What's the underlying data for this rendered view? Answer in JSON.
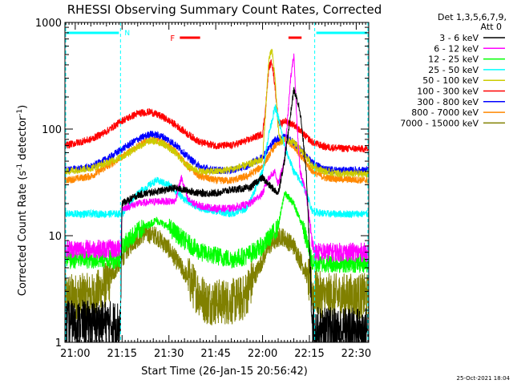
{
  "chart_data": {
    "type": "line",
    "title": "RHESSI Observing Summary Count Rates, Corrected",
    "xlabel": "Start Time (26-Jan-15 20:56:42)",
    "ylabel_main": "Corrected Count Rate (s",
    "ylabel_sup1": "-1",
    "ylabel_mid": " detector",
    "ylabel_sup2": "-1",
    "ylabel_end": ")",
    "y_scale": "log",
    "ylim": [
      1,
      1000
    ],
    "xlim": [
      56.7,
      154.0
    ],
    "x_unit": "minutes after 20:00 UT",
    "x_ticks": [
      60,
      75,
      90,
      105,
      120,
      135,
      150
    ],
    "x_tick_labels": [
      "21:00",
      "21:15",
      "21:30",
      "21:45",
      "22:00",
      "22:15",
      "22:30"
    ],
    "y_ticks": [
      1,
      10,
      100,
      1000
    ],
    "y_tick_labels": [
      "1",
      "10",
      "100",
      "1000"
    ],
    "legend_header_line1": "Det 1,3,5,6,7,9,",
    "legend_header_line2": "Att 0",
    "legend_placement": "right",
    "timestamp": "25-Oct-2021 18:04",
    "series": [
      {
        "name": "3 - 6 keV",
        "color": "#000000",
        "x": [
          56.7,
          70,
          74.5,
          75,
          80,
          86,
          92,
          100,
          105,
          110,
          116,
          118,
          120,
          122,
          125,
          127,
          130,
          132,
          134,
          136,
          137,
          140,
          145,
          154
        ],
        "values": [
          1.5,
          1.5,
          1.5,
          20,
          24,
          26,
          28,
          25,
          25,
          27,
          28,
          32,
          35,
          30,
          25,
          50,
          235,
          150,
          40,
          1.5,
          1.3,
          1.3,
          1.3,
          1.3
        ]
      },
      {
        "name": "6 - 12 keV",
        "color": "#ff00ff",
        "x": [
          56.7,
          70,
          74.5,
          75,
          80,
          86,
          92,
          94,
          96,
          98,
          100,
          105,
          110,
          116,
          120,
          122,
          124,
          125,
          127,
          129,
          130,
          131,
          132,
          134,
          136,
          137,
          140,
          145,
          154
        ],
        "values": [
          7.5,
          7.5,
          7.5,
          18,
          20,
          21,
          21,
          35,
          22,
          20,
          19,
          18,
          18,
          20,
          25,
          35,
          40,
          30,
          50,
          300,
          500,
          120,
          40,
          25,
          8,
          7,
          7,
          7,
          7
        ]
      },
      {
        "name": "12 - 25 keV",
        "color": "#00ff00",
        "x": [
          56.7,
          70,
          74.5,
          75,
          80,
          86,
          90,
          95,
          100,
          105,
          110,
          115,
          120,
          125,
          127,
          130,
          133,
          136,
          140,
          145,
          154
        ],
        "values": [
          6,
          6,
          6,
          8,
          11,
          14,
          12,
          9,
          7,
          6.5,
          6,
          6.5,
          8,
          12,
          25,
          20,
          12,
          5.5,
          5.5,
          5.5,
          5.5
        ]
      },
      {
        "name": "25 - 50 keV",
        "color": "#00ffff",
        "x": [
          56.7,
          70,
          74.5,
          75,
          80,
          86,
          90,
          95,
          100,
          105,
          110,
          115,
          120,
          122,
          124,
          125,
          127,
          130,
          133,
          136,
          140,
          154
        ],
        "values": [
          16,
          16,
          16,
          16,
          25,
          33,
          30,
          22,
          18,
          17,
          16,
          18,
          40,
          90,
          160,
          130,
          70,
          40,
          30,
          17,
          16,
          16
        ]
      },
      {
        "name": "50 - 100 keV",
        "color": "#cccc00",
        "x": [
          56.7,
          65,
          70,
          75,
          80,
          84,
          88,
          92,
          96,
          100,
          105,
          110,
          115,
          120,
          121,
          122,
          123,
          124,
          125,
          126,
          127,
          130,
          133,
          136,
          140,
          145,
          154
        ],
        "values": [
          40,
          43,
          48,
          55,
          68,
          78,
          74,
          60,
          45,
          40,
          40,
          42,
          46,
          52,
          150,
          450,
          550,
          300,
          100,
          75,
          80,
          75,
          60,
          45,
          40,
          38,
          38
        ]
      },
      {
        "name": "100 - 300 keV",
        "color": "#ff0000",
        "x": [
          56.7,
          65,
          70,
          75,
          80,
          84,
          88,
          92,
          96,
          100,
          105,
          110,
          115,
          120,
          121,
          122,
          123,
          124,
          125,
          126,
          127,
          130,
          133,
          136,
          140,
          145,
          154
        ],
        "values": [
          70,
          80,
          95,
          120,
          140,
          145,
          130,
          110,
          90,
          75,
          70,
          70,
          78,
          90,
          160,
          380,
          430,
          250,
          120,
          110,
          120,
          110,
          90,
          75,
          68,
          66,
          65
        ]
      },
      {
        "name": "300 - 800 keV",
        "color": "#0000ff",
        "x": [
          56.7,
          65,
          70,
          75,
          80,
          84,
          88,
          92,
          96,
          100,
          105,
          110,
          115,
          120,
          124,
          127,
          130,
          133,
          136,
          140,
          145,
          154
        ],
        "values": [
          41,
          44,
          52,
          65,
          80,
          90,
          85,
          72,
          55,
          44,
          41,
          41,
          45,
          55,
          80,
          85,
          75,
          60,
          48,
          42,
          41,
          41
        ]
      },
      {
        "name": "800 - 7000 keV",
        "color": "#ff8800",
        "x": [
          56.7,
          65,
          70,
          75,
          80,
          84,
          88,
          92,
          96,
          100,
          105,
          110,
          115,
          120,
          124,
          127,
          130,
          133,
          136,
          140,
          145,
          154
        ],
        "values": [
          33,
          36,
          44,
          55,
          70,
          80,
          75,
          62,
          45,
          36,
          33,
          33,
          36,
          45,
          70,
          80,
          70,
          52,
          40,
          35,
          34,
          33
        ]
      },
      {
        "name": "7000 - 15000 keV",
        "color": "#808000",
        "x": [
          56.7,
          64,
          66,
          70,
          74,
          78,
          82,
          86,
          90,
          94,
          98,
          102,
          106,
          110,
          114,
          118,
          122,
          126,
          130,
          134,
          136,
          140,
          145,
          154
        ],
        "values": [
          2.7,
          2.7,
          2.7,
          3.5,
          5.5,
          8.5,
          10.5,
          10,
          7.5,
          5,
          3.3,
          2.4,
          2.4,
          2.4,
          2.6,
          4.5,
          8,
          10,
          8,
          4.5,
          3,
          2.7,
          2.7,
          2.7
        ]
      }
    ]
  },
  "overlays": {
    "night_label": "N",
    "flare_label": "F",
    "night_color": "#00ffff",
    "flare_color": "#ff0000",
    "night_intervals": [
      [
        56.7,
        74.5
      ],
      [
        136.7,
        154.0
      ]
    ],
    "flare_intervals": [
      [
        93.5,
        100.0
      ],
      [
        128.3,
        132.5
      ]
    ],
    "vertical_markers": [
      74.5,
      136.7
    ]
  }
}
